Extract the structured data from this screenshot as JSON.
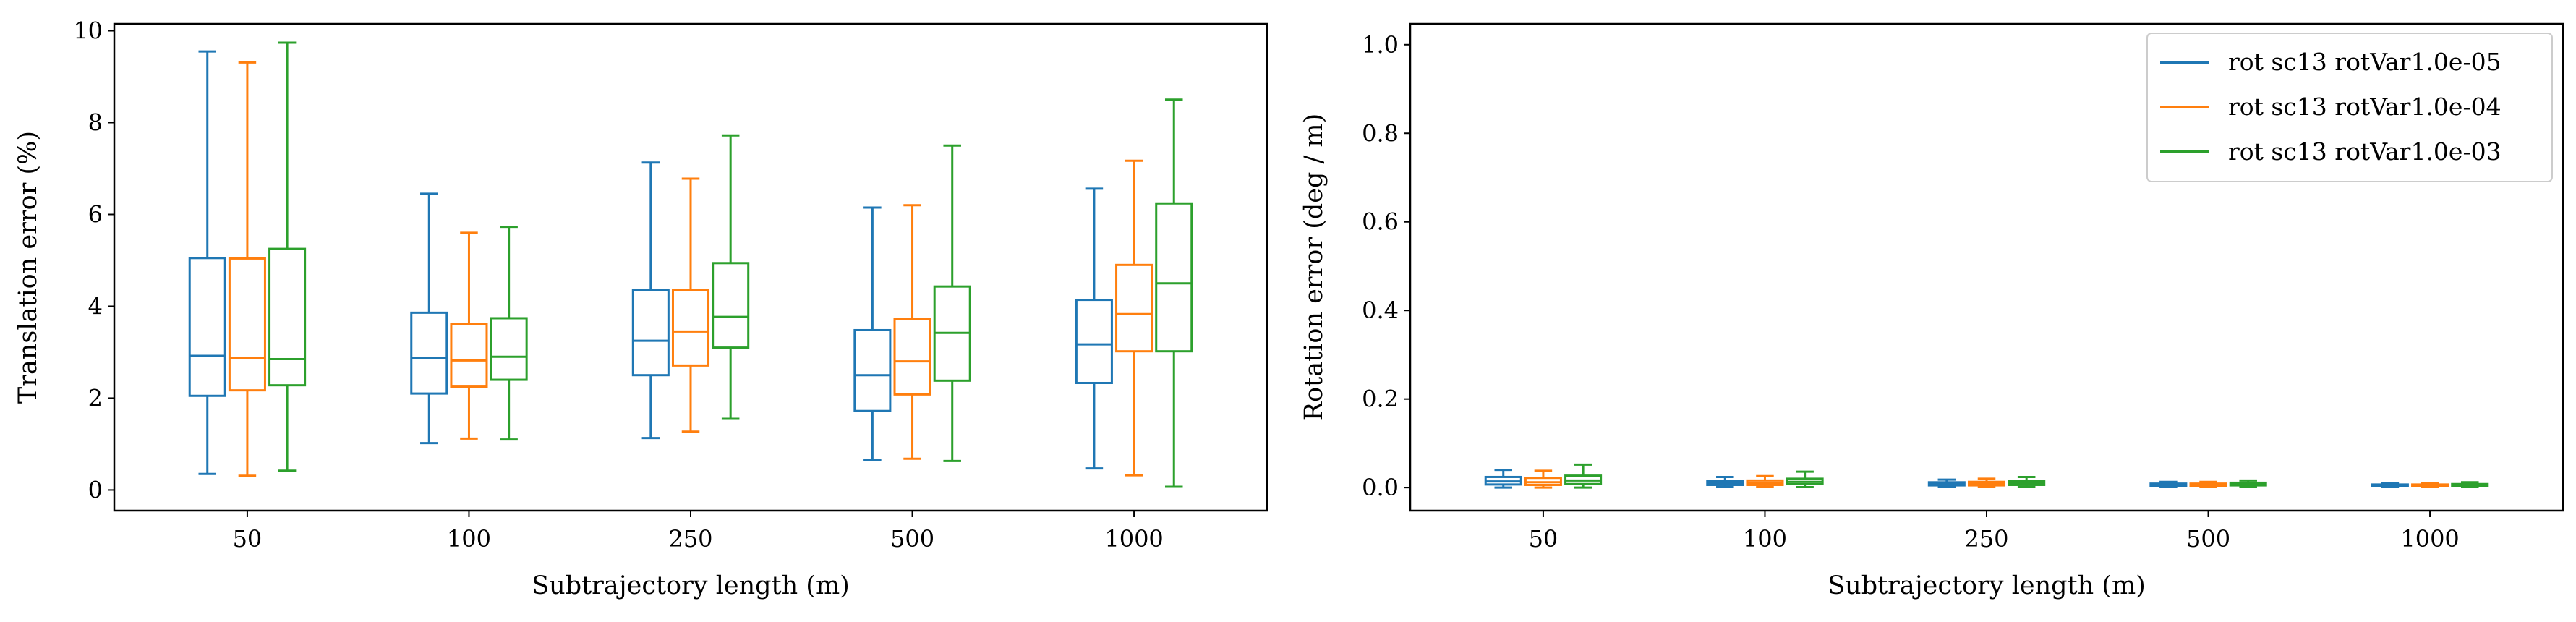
{
  "chart_data": [
    {
      "type": "box",
      "xlabel": "Subtrajectory length (m)",
      "ylabel": "Translation error (%)",
      "ylim": [
        -0.45,
        10.15
      ],
      "yticks": [
        0,
        2,
        4,
        6,
        8,
        10
      ],
      "categories": [
        "50",
        "100",
        "250",
        "500",
        "1000"
      ],
      "legend": "none",
      "series": [
        {
          "name": "rot sc13 rotVar1.0e-05",
          "color": "#1f77b4",
          "boxes": [
            {
              "whislo": 0.35,
              "q1": 2.05,
              "med": 2.92,
              "q3": 5.05,
              "whishi": 9.55
            },
            {
              "whislo": 1.02,
              "q1": 2.1,
              "med": 2.88,
              "q3": 3.86,
              "whishi": 6.45
            },
            {
              "whislo": 1.13,
              "q1": 2.5,
              "med": 3.25,
              "q3": 4.36,
              "whishi": 7.13
            },
            {
              "whislo": 0.66,
              "q1": 1.72,
              "med": 2.5,
              "q3": 3.48,
              "whishi": 6.15
            },
            {
              "whislo": 0.47,
              "q1": 2.33,
              "med": 3.17,
              "q3": 4.14,
              "whishi": 6.56
            }
          ]
        },
        {
          "name": "rot sc13 rotVar1.0e-04",
          "color": "#ff7f0e",
          "boxes": [
            {
              "whislo": 0.31,
              "q1": 2.17,
              "med": 2.88,
              "q3": 5.04,
              "whishi": 9.31
            },
            {
              "whislo": 1.12,
              "q1": 2.25,
              "med": 2.82,
              "q3": 3.62,
              "whishi": 5.6
            },
            {
              "whislo": 1.27,
              "q1": 2.71,
              "med": 3.45,
              "q3": 4.36,
              "whishi": 6.78
            },
            {
              "whislo": 0.68,
              "q1": 2.08,
              "med": 2.8,
              "q3": 3.73,
              "whishi": 6.2
            },
            {
              "whislo": 0.32,
              "q1": 3.02,
              "med": 3.83,
              "q3": 4.9,
              "whishi": 7.17
            }
          ]
        },
        {
          "name": "rot sc13 rotVar1.0e-03",
          "color": "#2ca02c",
          "boxes": [
            {
              "whislo": 0.42,
              "q1": 2.28,
              "med": 2.85,
              "q3": 5.25,
              "whishi": 9.74
            },
            {
              "whislo": 1.1,
              "q1": 2.4,
              "med": 2.9,
              "q3": 3.74,
              "whishi": 5.73
            },
            {
              "whislo": 1.55,
              "q1": 3.1,
              "med": 3.77,
              "q3": 4.94,
              "whishi": 7.72
            },
            {
              "whislo": 0.63,
              "q1": 2.38,
              "med": 3.42,
              "q3": 4.43,
              "whishi": 7.5
            },
            {
              "whislo": 0.07,
              "q1": 3.02,
              "med": 4.5,
              "q3": 6.24,
              "whishi": 8.5
            }
          ]
        }
      ]
    },
    {
      "type": "box",
      "xlabel": "Subtrajectory length (m)",
      "ylabel": "Rotation error (deg / m)",
      "ylim": [
        -0.052,
        1.047
      ],
      "yticks": [
        "0.0",
        "0.2",
        "0.4",
        "0.6",
        "0.8",
        "1.0"
      ],
      "categories": [
        "50",
        "100",
        "250",
        "500",
        "1000"
      ],
      "legend": "top-right",
      "series": [
        {
          "name": "rot sc13 rotVar1.0e-05",
          "color": "#1f77b4",
          "boxes": [
            {
              "whislo": 0.0,
              "q1": 0.007,
              "med": 0.014,
              "q3": 0.024,
              "whishi": 0.04
            },
            {
              "whislo": 0.001,
              "q1": 0.006,
              "med": 0.01,
              "q3": 0.015,
              "whishi": 0.024
            },
            {
              "whislo": 0.001,
              "q1": 0.005,
              "med": 0.008,
              "q3": 0.012,
              "whishi": 0.018
            },
            {
              "whislo": 0.001,
              "q1": 0.004,
              "med": 0.006,
              "q3": 0.009,
              "whishi": 0.013
            },
            {
              "whislo": 0.001,
              "q1": 0.003,
              "med": 0.005,
              "q3": 0.007,
              "whishi": 0.01
            }
          ]
        },
        {
          "name": "rot sc13 rotVar1.0e-04",
          "color": "#ff7f0e",
          "boxes": [
            {
              "whislo": 0.0,
              "q1": 0.006,
              "med": 0.012,
              "q3": 0.022,
              "whishi": 0.038
            },
            {
              "whislo": 0.001,
              "q1": 0.006,
              "med": 0.01,
              "q3": 0.016,
              "whishi": 0.026
            },
            {
              "whislo": 0.001,
              "q1": 0.005,
              "med": 0.009,
              "q3": 0.013,
              "whishi": 0.02
            },
            {
              "whislo": 0.001,
              "q1": 0.004,
              "med": 0.006,
              "q3": 0.009,
              "whishi": 0.013
            },
            {
              "whislo": 0.001,
              "q1": 0.003,
              "med": 0.005,
              "q3": 0.007,
              "whishi": 0.01
            }
          ]
        },
        {
          "name": "rot sc13 rotVar1.0e-03",
          "color": "#2ca02c",
          "boxes": [
            {
              "whislo": 0.0,
              "q1": 0.008,
              "med": 0.016,
              "q3": 0.027,
              "whishi": 0.052
            },
            {
              "whislo": 0.001,
              "q1": 0.008,
              "med": 0.013,
              "q3": 0.02,
              "whishi": 0.036
            },
            {
              "whislo": 0.001,
              "q1": 0.006,
              "med": 0.01,
              "q3": 0.015,
              "whishi": 0.024
            },
            {
              "whislo": 0.001,
              "q1": 0.005,
              "med": 0.008,
              "q3": 0.011,
              "whishi": 0.016
            },
            {
              "whislo": 0.001,
              "q1": 0.004,
              "med": 0.006,
              "q3": 0.008,
              "whishi": 0.012
            }
          ]
        }
      ]
    }
  ]
}
